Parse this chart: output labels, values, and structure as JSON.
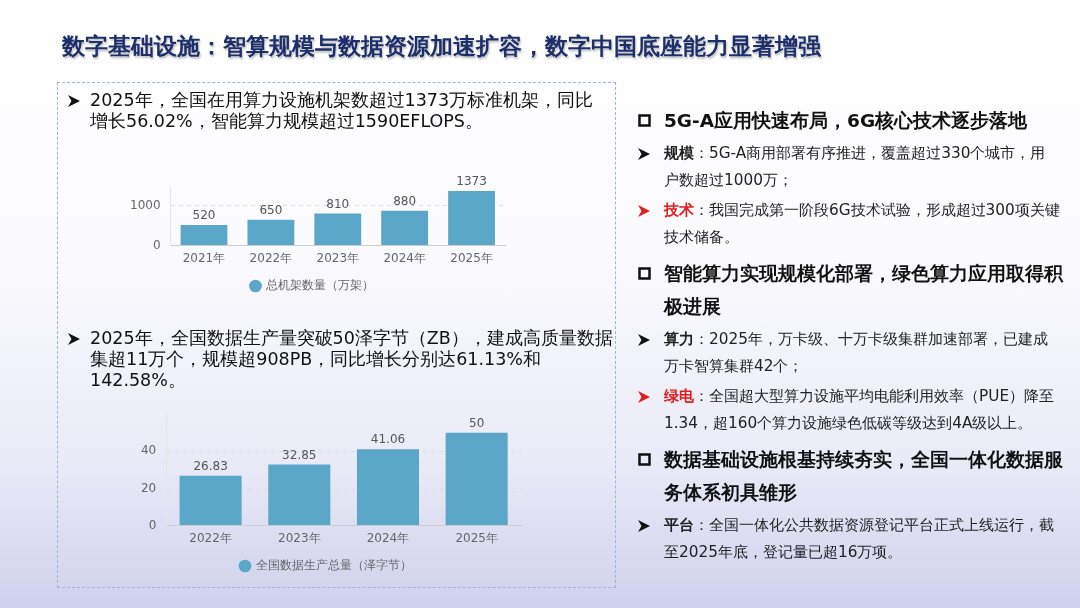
{
  "chart_data": [
    {
      "type": "other",
      "title": "数字基础设施：智算规模与数据资源加速扩容，数字中国底座能力显著增强"
    },
    {
      "type": "bar",
      "title": "2025年，全国在用算力设施机架数超过1373万标准机架，同比增长56.02%，智能算力规模超过1590EFLOPS。",
      "categories": [
        "2021年",
        "2022年",
        "2023年",
        "2024年",
        "2025年"
      ],
      "series": [
        {
          "name": "总机架数量（万架）",
          "color": "#5ba7c9",
          "values": [
            520,
            650,
            810,
            880,
            1373
          ]
        }
      ],
      "ylim": [
        0,
        1500
      ],
      "yticks": [
        0,
        1000
      ],
      "grid": "y",
      "legend": "bottom",
      "data_labels": true
    },
    {
      "type": "bar",
      "title": "2025年，全国数据生产量突破50泽字节（ZB），建成高质量数据集超11万个，规模超908PB，同比增长分别达61.13%和142.58%。",
      "categories": [
        "2022年",
        "2023年",
        "2024年",
        "2025年"
      ],
      "series": [
        {
          "name": "全国数据生产总量（泽字节）",
          "color": "#5ba7c9",
          "values": [
            26.83,
            32.85,
            41.06,
            50
          ]
        }
      ],
      "ylim": [
        0,
        60
      ],
      "yticks": [
        0,
        20,
        40
      ],
      "grid": "y",
      "legend": "bottom",
      "data_labels": true
    },
    {
      "type": "other",
      "annotations": [
        "5G-A应用快速布局，6G核心技术逐步落地",
        "规模：5G-A商用部署有序推进，覆盖超过330个城市，用户数超过1000万；",
        "技术：我国完成第一阶段6G技术试验，形成超过300项关键技术储备。",
        "智能算力实现规模化部署，绿色算力应用取得积极进展",
        "算力：2025年，万卡级、十万卡级集群加速部署，已建成万卡智算集群42个；",
        "绿电：全国超大型算力设施平均电能利用效率（PUE）降至1.34，超160个算力设施绿色低碳等级达到4A级以上。",
        "数据基础设施根基持续夯实，全国一体化数据服务体系初具雏形",
        "平台：全国一体化公共数据资源登记平台正式上线运行，截至2025年底，登记量已超16万项。"
      ]
    }
  ]
}
